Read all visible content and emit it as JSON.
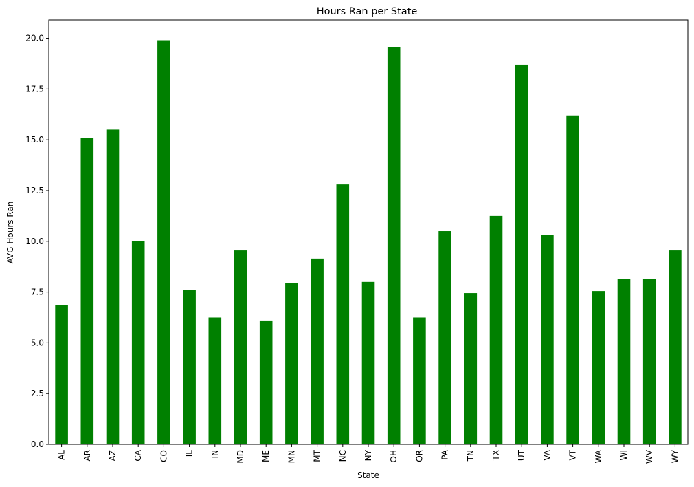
{
  "chart_data": {
    "type": "bar",
    "title": "Hours Ran per State",
    "xlabel": "State",
    "ylabel": "AVG Hours Ran",
    "categories": [
      "AL",
      "AR",
      "AZ",
      "CA",
      "CO",
      "IL",
      "IN",
      "MD",
      "ME",
      "MN",
      "MT",
      "NC",
      "NY",
      "OH",
      "OR",
      "PA",
      "TN",
      "TX",
      "UT",
      "VA",
      "VT",
      "WA",
      "WI",
      "WV",
      "WY"
    ],
    "values": [
      6.85,
      15.1,
      15.5,
      10.0,
      19.9,
      7.6,
      6.25,
      9.55,
      6.1,
      7.95,
      9.15,
      12.8,
      8.0,
      19.55,
      6.25,
      10.5,
      7.45,
      11.25,
      18.7,
      10.3,
      16.2,
      7.55,
      8.15,
      8.15,
      9.55
    ],
    "yticks": [
      "0.0",
      "2.5",
      "5.0",
      "7.5",
      "10.0",
      "12.5",
      "15.0",
      "17.5",
      "20.0"
    ],
    "ylim": [
      0,
      20.9
    ],
    "grid": false,
    "bar_color": "#008000"
  }
}
